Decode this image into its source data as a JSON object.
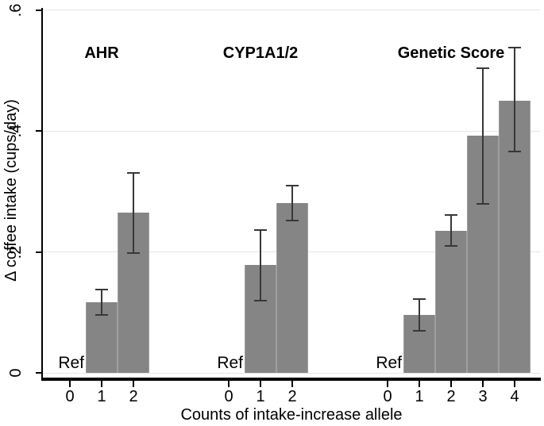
{
  "chart_data": {
    "type": "bar",
    "title": "",
    "xlabel": "Counts of intake-increase allele",
    "ylabel": "Δ coffee intake (cups/day)",
    "ylim": [
      0,
      0.6
    ],
    "yticks": [
      0,
      0.2,
      0.4,
      0.6
    ],
    "ytick_labels": [
      "0",
      ".2",
      ".4",
      ".6"
    ],
    "grid": "horizontal-light",
    "legend": "none",
    "ref_label": "Ref",
    "colors": {
      "bar": "#858585",
      "error_bar": "#383838",
      "gridline": "#e4e4e4",
      "axis": "#000000",
      "background": "#ffffff"
    },
    "groups": [
      {
        "name": "AHR",
        "bars": [
          {
            "allele_count": "0",
            "ref": true,
            "value": 0
          },
          {
            "allele_count": "1",
            "value": 0.117,
            "ci_low": 0.095,
            "ci_high": 0.139
          },
          {
            "allele_count": "2",
            "value": 0.265,
            "ci_low": 0.197,
            "ci_high": 0.332
          }
        ]
      },
      {
        "name": "CYP1A1/2",
        "bars": [
          {
            "allele_count": "0",
            "ref": true,
            "value": 0
          },
          {
            "allele_count": "1",
            "value": 0.178,
            "ci_low": 0.118,
            "ci_high": 0.238
          },
          {
            "allele_count": "2",
            "value": 0.281,
            "ci_low": 0.251,
            "ci_high": 0.311
          }
        ]
      },
      {
        "name": "Genetic Score",
        "bars": [
          {
            "allele_count": "0",
            "ref": true,
            "value": 0
          },
          {
            "allele_count": "1",
            "value": 0.096,
            "ci_low": 0.068,
            "ci_high": 0.123
          },
          {
            "allele_count": "2",
            "value": 0.235,
            "ci_low": 0.209,
            "ci_high": 0.263
          },
          {
            "allele_count": "3",
            "value": 0.392,
            "ci_low": 0.278,
            "ci_high": 0.506
          },
          {
            "allele_count": "4",
            "value": 0.45,
            "ci_low": 0.365,
            "ci_high": 0.539
          }
        ]
      }
    ]
  }
}
